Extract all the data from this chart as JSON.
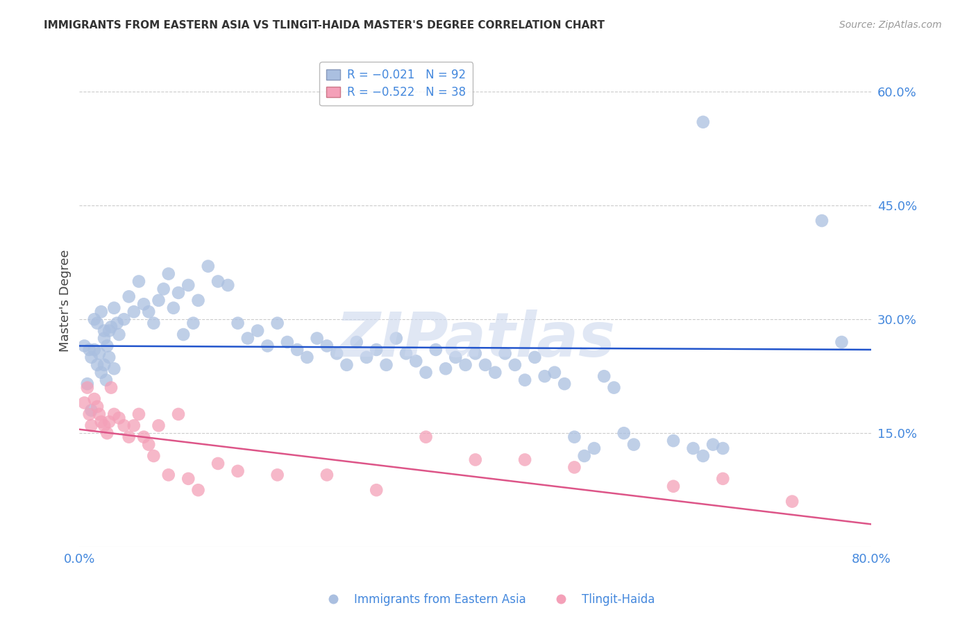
{
  "title": "IMMIGRANTS FROM EASTERN ASIA VS TLINGIT-HAIDA MASTER'S DEGREE CORRELATION CHART",
  "source": "Source: ZipAtlas.com",
  "xlabel_blue": "Immigrants from Eastern Asia",
  "xlabel_pink": "Tlingit-Haida",
  "ylabel": "Master's Degree",
  "xlim": [
    0.0,
    0.8
  ],
  "ylim": [
    0.0,
    0.65
  ],
  "yticks": [
    0.15,
    0.3,
    0.45,
    0.6
  ],
  "ytick_labels": [
    "15.0%",
    "30.0%",
    "45.0%",
    "60.0%"
  ],
  "xtick_labels": [
    "0.0%",
    "80.0%"
  ],
  "legend_blue_R": "R = -0.021",
  "legend_blue_N": "N = 92",
  "legend_pink_R": "R = -0.522",
  "legend_pink_N": "N = 38",
  "blue_color": "#aabfe0",
  "pink_color": "#f4a0b8",
  "blue_line_color": "#2255cc",
  "pink_line_color": "#dd5588",
  "text_color": "#4488dd",
  "title_color": "#333333",
  "source_color": "#999999",
  "ylabel_color": "#444444",
  "background_color": "#ffffff",
  "watermark": "ZIPatlas",
  "grid_color": "#cccccc",
  "legend_edge_color": "#aaaaaa",
  "blue_line_start_y": 0.265,
  "blue_line_end_y": 0.26,
  "pink_line_start_y": 0.155,
  "pink_line_end_y": 0.03,
  "blue_scatter_x": [
    0.005,
    0.01,
    0.012,
    0.015,
    0.018,
    0.02,
    0.022,
    0.025,
    0.027,
    0.03,
    0.015,
    0.018,
    0.022,
    0.025,
    0.028,
    0.032,
    0.035,
    0.038,
    0.04,
    0.045,
    0.05,
    0.055,
    0.06,
    0.065,
    0.07,
    0.075,
    0.08,
    0.085,
    0.09,
    0.095,
    0.1,
    0.105,
    0.11,
    0.115,
    0.12,
    0.13,
    0.14,
    0.15,
    0.16,
    0.17,
    0.18,
    0.19,
    0.2,
    0.21,
    0.22,
    0.23,
    0.24,
    0.25,
    0.26,
    0.27,
    0.28,
    0.29,
    0.3,
    0.31,
    0.32,
    0.33,
    0.34,
    0.35,
    0.36,
    0.37,
    0.38,
    0.39,
    0.4,
    0.41,
    0.42,
    0.43,
    0.44,
    0.45,
    0.46,
    0.47,
    0.48,
    0.49,
    0.5,
    0.51,
    0.52,
    0.53,
    0.54,
    0.55,
    0.56,
    0.6,
    0.62,
    0.63,
    0.64,
    0.65,
    0.025,
    0.03,
    0.035,
    0.008,
    0.012,
    0.75,
    0.77,
    0.63
  ],
  "blue_scatter_y": [
    0.265,
    0.26,
    0.25,
    0.26,
    0.24,
    0.255,
    0.23,
    0.275,
    0.22,
    0.285,
    0.3,
    0.295,
    0.31,
    0.285,
    0.265,
    0.29,
    0.315,
    0.295,
    0.28,
    0.3,
    0.33,
    0.31,
    0.35,
    0.32,
    0.31,
    0.295,
    0.325,
    0.34,
    0.36,
    0.315,
    0.335,
    0.28,
    0.345,
    0.295,
    0.325,
    0.37,
    0.35,
    0.345,
    0.295,
    0.275,
    0.285,
    0.265,
    0.295,
    0.27,
    0.26,
    0.25,
    0.275,
    0.265,
    0.255,
    0.24,
    0.27,
    0.25,
    0.26,
    0.24,
    0.275,
    0.255,
    0.245,
    0.23,
    0.26,
    0.235,
    0.25,
    0.24,
    0.255,
    0.24,
    0.23,
    0.255,
    0.24,
    0.22,
    0.25,
    0.225,
    0.23,
    0.215,
    0.145,
    0.12,
    0.13,
    0.225,
    0.21,
    0.15,
    0.135,
    0.14,
    0.13,
    0.12,
    0.135,
    0.13,
    0.24,
    0.25,
    0.235,
    0.215,
    0.18,
    0.43,
    0.27,
    0.56
  ],
  "pink_scatter_x": [
    0.005,
    0.008,
    0.01,
    0.012,
    0.015,
    0.018,
    0.02,
    0.022,
    0.025,
    0.028,
    0.03,
    0.032,
    0.035,
    0.04,
    0.045,
    0.05,
    0.055,
    0.06,
    0.065,
    0.07,
    0.075,
    0.08,
    0.09,
    0.1,
    0.11,
    0.12,
    0.14,
    0.16,
    0.2,
    0.25,
    0.3,
    0.35,
    0.4,
    0.45,
    0.5,
    0.6,
    0.65,
    0.72
  ],
  "pink_scatter_y": [
    0.19,
    0.21,
    0.175,
    0.16,
    0.195,
    0.185,
    0.175,
    0.165,
    0.16,
    0.15,
    0.165,
    0.21,
    0.175,
    0.17,
    0.16,
    0.145,
    0.16,
    0.175,
    0.145,
    0.135,
    0.12,
    0.16,
    0.095,
    0.175,
    0.09,
    0.075,
    0.11,
    0.1,
    0.095,
    0.095,
    0.075,
    0.145,
    0.115,
    0.115,
    0.105,
    0.08,
    0.09,
    0.06
  ]
}
